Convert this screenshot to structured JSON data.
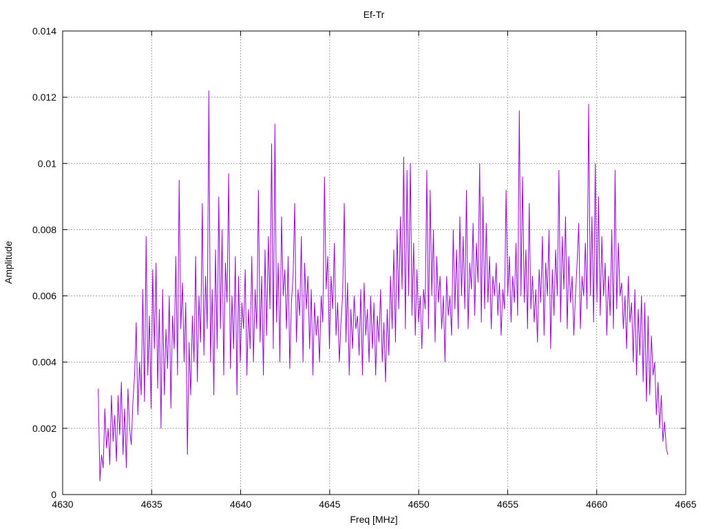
{
  "chart_data": {
    "type": "line",
    "title": "Ef-Tr",
    "xlabel": "Freq [MHz]",
    "ylabel": "Amplitude",
    "xlim": [
      4630,
      4665
    ],
    "ylim": [
      0,
      0.014
    ],
    "x_ticks": [
      "4630",
      "4635",
      "4640",
      "4645",
      "4650",
      "4655",
      "4660",
      "4665"
    ],
    "y_ticks": [
      "0",
      "0.002",
      "0.004",
      "0.006",
      "0.008",
      "0.01",
      "0.012",
      "0.014"
    ],
    "grid": true,
    "legend": "none",
    "series_color": "#9400d3",
    "series": [
      {
        "name": "",
        "x_start": 4632.0,
        "x_end": 4664.0,
        "values": [
          0.0032,
          0.0004,
          0.0012,
          0.0008,
          0.0026,
          0.0014,
          0.002,
          0.0009,
          0.003,
          0.0016,
          0.0024,
          0.001,
          0.003,
          0.0018,
          0.0034,
          0.0012,
          0.0026,
          0.0008,
          0.0032,
          0.002,
          0.0015,
          0.0028,
          0.0036,
          0.0052,
          0.0024,
          0.004,
          0.003,
          0.0062,
          0.0028,
          0.0078,
          0.0036,
          0.0054,
          0.0026,
          0.0068,
          0.0044,
          0.007,
          0.0032,
          0.0056,
          0.002,
          0.0062,
          0.003,
          0.005,
          0.0038,
          0.006,
          0.0026,
          0.0054,
          0.0044,
          0.0072,
          0.0036,
          0.0095,
          0.005,
          0.0064,
          0.004,
          0.0058,
          0.0012,
          0.0046,
          0.003,
          0.0054,
          0.004,
          0.0072,
          0.0034,
          0.006,
          0.0046,
          0.0088,
          0.0042,
          0.0066,
          0.005,
          0.0122,
          0.004,
          0.0062,
          0.003,
          0.0074,
          0.0044,
          0.009,
          0.005,
          0.008,
          0.0036,
          0.007,
          0.0058,
          0.0097,
          0.0038,
          0.006,
          0.0044,
          0.0072,
          0.003,
          0.0066,
          0.004,
          0.0058,
          0.005,
          0.0068,
          0.0036,
          0.0056,
          0.0044,
          0.0072,
          0.004,
          0.0062,
          0.005,
          0.0092,
          0.0046,
          0.0066,
          0.0036,
          0.0074,
          0.0048,
          0.0078,
          0.0056,
          0.0106,
          0.0044,
          0.0112,
          0.0052,
          0.007,
          0.004,
          0.0084,
          0.006,
          0.0068,
          0.005,
          0.0072,
          0.0038,
          0.0058,
          0.0066,
          0.0088,
          0.0046,
          0.0062,
          0.0054,
          0.0078,
          0.004,
          0.007,
          0.0056,
          0.0066,
          0.0044,
          0.0062,
          0.0036,
          0.0058,
          0.0048,
          0.0054,
          0.004,
          0.006,
          0.0052,
          0.0096,
          0.0062,
          0.0072,
          0.0044,
          0.0066,
          0.0056,
          0.0076,
          0.0048,
          0.0058,
          0.004,
          0.0052,
          0.006,
          0.0088,
          0.0046,
          0.0064,
          0.0036,
          0.0056,
          0.0044,
          0.006,
          0.005,
          0.0054,
          0.0042,
          0.0062,
          0.0036,
          0.0064,
          0.0048,
          0.0056,
          0.004,
          0.006,
          0.0044,
          0.0058,
          0.0036,
          0.0054,
          0.0046,
          0.0062,
          0.004,
          0.0052,
          0.0034,
          0.0056,
          0.0042,
          0.0066,
          0.005,
          0.0074,
          0.0046,
          0.008,
          0.0056,
          0.0084,
          0.0062,
          0.0102,
          0.005,
          0.0098,
          0.006,
          0.01,
          0.0054,
          0.0076,
          0.0048,
          0.0068,
          0.0052,
          0.006,
          0.0044,
          0.0062,
          0.0056,
          0.0098,
          0.005,
          0.0092,
          0.006,
          0.008,
          0.0046,
          0.0072,
          0.0058,
          0.0066,
          0.005,
          0.006,
          0.004,
          0.0066,
          0.0054,
          0.006,
          0.0048,
          0.008,
          0.0056,
          0.0074,
          0.005,
          0.0084,
          0.006,
          0.0078,
          0.0056,
          0.0092,
          0.005,
          0.007,
          0.0062,
          0.0082,
          0.0054,
          0.0076,
          0.0064,
          0.01,
          0.0052,
          0.009,
          0.0056,
          0.0082,
          0.0058,
          0.0072,
          0.005,
          0.0066,
          0.006,
          0.007,
          0.0054,
          0.0064,
          0.0048,
          0.0062,
          0.0056,
          0.0092,
          0.006,
          0.0072,
          0.0052,
          0.0066,
          0.0058,
          0.0076,
          0.0054,
          0.0116,
          0.006,
          0.0096,
          0.0058,
          0.0074,
          0.005,
          0.0088,
          0.0056,
          0.0066,
          0.0052,
          0.0062,
          0.0046,
          0.0068,
          0.0058,
          0.0078,
          0.0048,
          0.007,
          0.006,
          0.008,
          0.0044,
          0.0068,
          0.0054,
          0.0074,
          0.006,
          0.0098,
          0.0052,
          0.0078,
          0.0062,
          0.0084,
          0.005,
          0.0072,
          0.0058,
          0.0066,
          0.0048,
          0.006,
          0.007,
          0.0082,
          0.005,
          0.0066,
          0.006,
          0.0076,
          0.0056,
          0.0118,
          0.006,
          0.0084,
          0.0052,
          0.01,
          0.0058,
          0.009,
          0.0054,
          0.0078,
          0.006,
          0.007,
          0.0048,
          0.0066,
          0.0054,
          0.008,
          0.005,
          0.0098,
          0.0056,
          0.0076,
          0.006,
          0.0064,
          0.005,
          0.006,
          0.0044,
          0.0066,
          0.0052,
          0.0058,
          0.004,
          0.0062,
          0.0036,
          0.0056,
          0.0042,
          0.006,
          0.0034,
          0.0058,
          0.0028,
          0.0054,
          0.003,
          0.0048,
          0.0036,
          0.004,
          0.0024,
          0.0034,
          0.002,
          0.003,
          0.0016,
          0.0022,
          0.0014,
          0.0012
        ]
      }
    ]
  }
}
